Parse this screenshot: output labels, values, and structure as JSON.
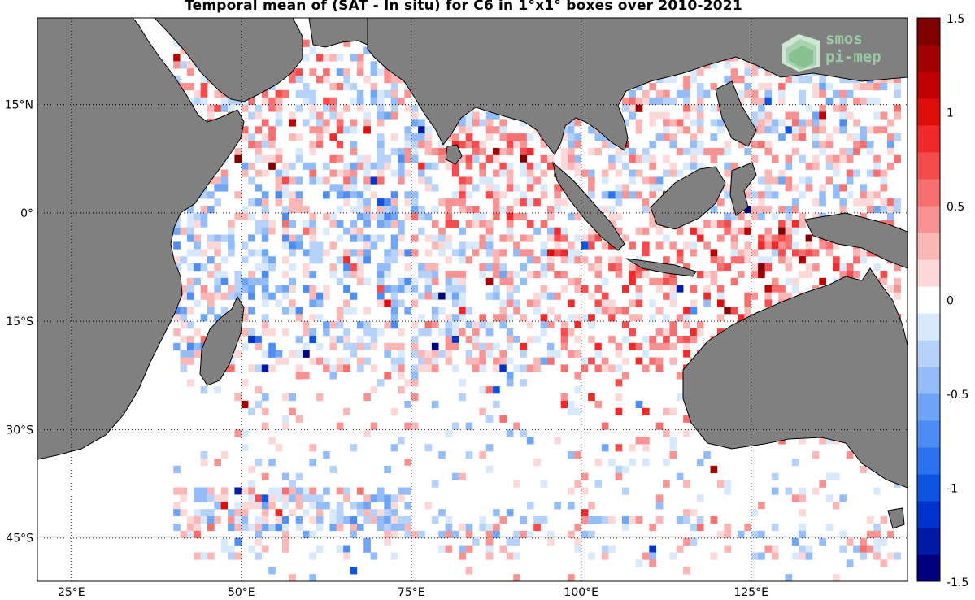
{
  "title": "Temporal mean of (SAT - In situ) for C6 in 1°x1° boxes over 2010-2021",
  "logo": {
    "line1": "smos",
    "line2": "pi-mep",
    "icon": "smos-logo-icon"
  },
  "axes": {
    "lon_range": [
      20,
      148
    ],
    "lat_range": [
      -51,
      27
    ],
    "lon_ticks": [
      {
        "value": 25,
        "label": "25°E"
      },
      {
        "value": 50,
        "label": "50°E"
      },
      {
        "value": 75,
        "label": "75°E"
      },
      {
        "value": 100,
        "label": "100°E"
      },
      {
        "value": 125,
        "label": "125°E"
      }
    ],
    "lat_ticks": [
      {
        "value": 15,
        "label": "15°N"
      },
      {
        "value": 0,
        "label": "0°"
      },
      {
        "value": -15,
        "label": "15°S"
      },
      {
        "value": -30,
        "label": "30°S"
      },
      {
        "value": -45,
        "label": "45°S"
      }
    ],
    "grid": "dotted"
  },
  "colorbar": {
    "range": [
      -1.5,
      1.5
    ],
    "ticks": [
      {
        "value": 1.5,
        "label": "1.5"
      },
      {
        "value": 1,
        "label": "1"
      },
      {
        "value": 0.5,
        "label": "0.5"
      },
      {
        "value": 0,
        "label": "0"
      },
      {
        "value": -0.5,
        "label": "-0.5"
      },
      {
        "value": -1,
        "label": "-1"
      },
      {
        "value": -1.5,
        "label": "-1.5"
      }
    ],
    "colors": [
      "#00007f",
      "#001aa6",
      "#0033cc",
      "#0d55e0",
      "#2a72f0",
      "#4d8cf5",
      "#6fa5f7",
      "#93bcf9",
      "#b6d2fb",
      "#d8e8fd",
      "#ffffff",
      "#fdd8d8",
      "#fbb6b6",
      "#f99393",
      "#f76f6f",
      "#f54d4d",
      "#f02a2a",
      "#e00d0d",
      "#c00000",
      "#a00000",
      "#7f0000"
    ]
  },
  "colors": {
    "land": "#808080",
    "ocean": "#ffffff",
    "coast": "#000000"
  },
  "map_data": {
    "type": "gridded-boxes",
    "cell_deg": 1,
    "seed": 7
  }
}
